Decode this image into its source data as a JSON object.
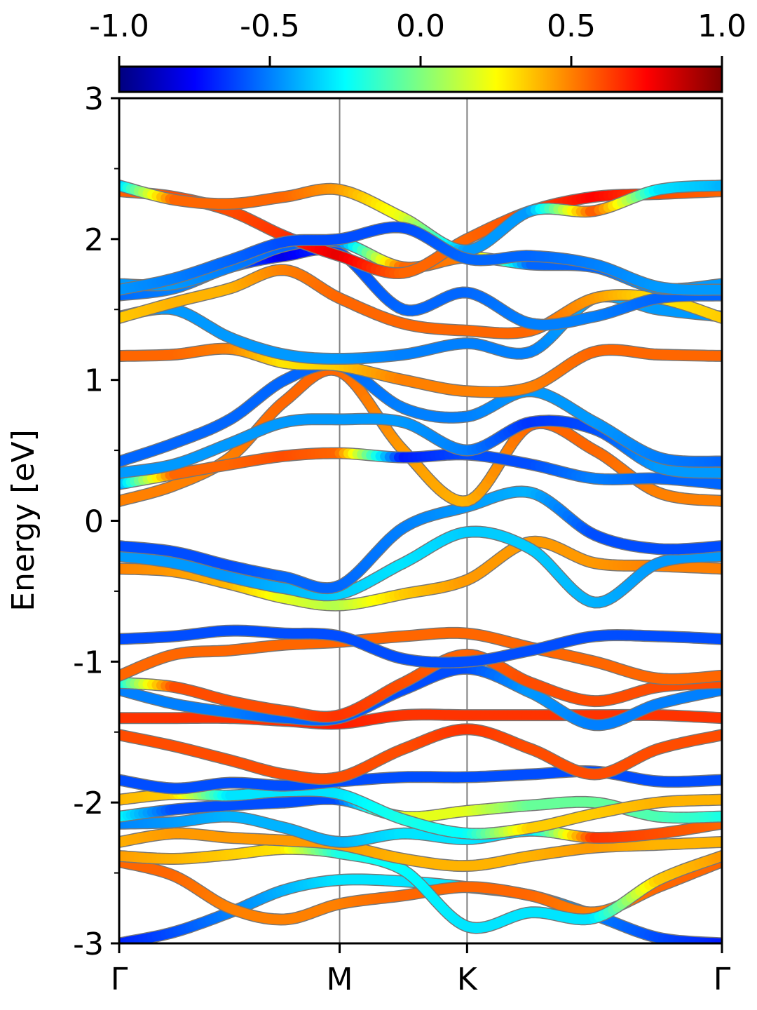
{
  "chart_data": {
    "type": "line",
    "title": "",
    "xlabel": "",
    "ylabel": "Energy [eV]",
    "ylim": [
      -3,
      3
    ],
    "yticks": [
      "3",
      "2",
      "1",
      "0",
      "-1",
      "-2",
      "-3"
    ],
    "xlim": [
      0,
      4.73
    ],
    "kpoints": [
      {
        "label": "Γ",
        "x": 0
      },
      {
        "label": "M",
        "x": 1.73
      },
      {
        "label": "K",
        "x": 2.73
      },
      {
        "label": "Γ",
        "x": 4.73
      }
    ],
    "colorbar": {
      "colormap": "jet",
      "range": [
        -1.0,
        1.0
      ],
      "ticks": [
        "-1.0",
        "-0.5",
        "0.0",
        "0.5",
        "1.0"
      ]
    },
    "series": [
      {
        "x": [
          0,
          0.43,
          0.87,
          1.3,
          1.73,
          2.23,
          2.73,
          3.23,
          3.73,
          4.23,
          4.73
        ],
        "y": [
          -3.0,
          -2.92,
          -2.78,
          -2.62,
          -2.55,
          -2.56,
          -2.6,
          -2.66,
          -2.8,
          -2.96,
          -3.0
        ],
        "c": [
          -0.7,
          -0.6,
          -0.5,
          -0.4,
          -0.3,
          -0.3,
          -0.3,
          -0.4,
          -0.5,
          -0.6,
          -0.7
        ]
      },
      {
        "x": [
          0,
          0.43,
          0.87,
          1.3,
          1.73,
          2.23,
          2.73,
          3.23,
          3.73,
          4.23,
          4.73
        ],
        "y": [
          -2.42,
          -2.52,
          -2.75,
          -2.83,
          -2.72,
          -2.66,
          -2.6,
          -2.66,
          -2.78,
          -2.6,
          -2.42
        ],
        "c": [
          0.55,
          0.55,
          0.5,
          0.5,
          0.5,
          0.55,
          0.55,
          0.55,
          0.5,
          0.55,
          0.55
        ]
      },
      {
        "x": [
          0,
          0.43,
          0.87,
          1.3,
          1.73,
          2.23,
          2.73,
          3.23,
          3.73,
          4.23,
          4.73
        ],
        "y": [
          -2.38,
          -2.4,
          -2.37,
          -2.33,
          -2.36,
          -2.48,
          -2.88,
          -2.78,
          -2.82,
          -2.55,
          -2.38
        ],
        "c": [
          0.45,
          0.4,
          0.35,
          0.3,
          -0.2,
          -0.25,
          -0.3,
          -0.3,
          -0.3,
          0.35,
          0.45
        ]
      },
      {
        "x": [
          0,
          0.43,
          0.87,
          1.3,
          1.73,
          2.23,
          2.73,
          3.23,
          3.73,
          4.23,
          4.73
        ],
        "y": [
          -2.28,
          -2.22,
          -2.25,
          -2.27,
          -2.3,
          -2.4,
          -2.45,
          -2.38,
          -2.32,
          -2.3,
          -2.28
        ],
        "c": [
          0.4,
          0.45,
          0.45,
          0.45,
          0.45,
          0.4,
          0.4,
          0.4,
          0.45,
          0.4,
          0.4
        ]
      },
      {
        "x": [
          0,
          0.43,
          0.87,
          1.3,
          1.73,
          2.23,
          2.73,
          3.23,
          3.73,
          4.23,
          4.73
        ],
        "y": [
          -2.15,
          -2.14,
          -2.1,
          -2.18,
          -2.28,
          -2.22,
          -2.26,
          -2.2,
          -2.25,
          -2.22,
          -2.15
        ],
        "c": [
          -0.5,
          -0.45,
          -0.4,
          -0.4,
          -0.4,
          -0.3,
          -0.3,
          -0.35,
          0.65,
          0.6,
          0.55
        ]
      },
      {
        "x": [
          0,
          0.43,
          0.87,
          1.3,
          1.73,
          2.23,
          2.73,
          3.23,
          3.73,
          4.23,
          4.73
        ],
        "y": [
          -2.1,
          -2.05,
          -2.02,
          -2.0,
          -1.98,
          -2.1,
          -2.06,
          -2.02,
          -2.0,
          -2.1,
          -2.1
        ],
        "c": [
          -0.2,
          -0.6,
          -0.6,
          -0.6,
          -0.6,
          0.2,
          0.2,
          -0.05,
          -0.05,
          -0.1,
          -0.2
        ]
      },
      {
        "x": [
          0,
          0.43,
          0.87,
          1.3,
          1.73,
          2.23,
          2.73,
          3.23,
          3.73,
          4.23,
          4.73
        ],
        "y": [
          -1.98,
          -1.94,
          -1.95,
          -1.92,
          -1.94,
          -2.12,
          -2.22,
          -2.18,
          -2.08,
          -2.0,
          -1.98
        ],
        "c": [
          0.4,
          0.35,
          -0.3,
          -0.3,
          -0.3,
          -0.2,
          -0.25,
          0.35,
          0.35,
          0.4,
          0.4
        ]
      },
      {
        "x": [
          0,
          0.43,
          0.87,
          1.3,
          1.73,
          2.23,
          2.73,
          3.23,
          3.73,
          4.23,
          4.73
        ],
        "y": [
          -1.84,
          -1.9,
          -1.86,
          -1.88,
          -1.85,
          -1.82,
          -1.82,
          -1.8,
          -1.78,
          -1.85,
          -1.84
        ],
        "c": [
          -0.6,
          -0.6,
          -0.6,
          -0.6,
          -0.6,
          -0.6,
          -0.6,
          -0.6,
          -0.6,
          -0.6,
          -0.6
        ]
      },
      {
        "x": [
          0,
          0.43,
          0.87,
          1.3,
          1.73,
          2.23,
          2.73,
          3.23,
          3.73,
          4.23,
          4.73
        ],
        "y": [
          -1.52,
          -1.6,
          -1.7,
          -1.8,
          -1.82,
          -1.62,
          -1.48,
          -1.62,
          -1.8,
          -1.62,
          -1.52
        ],
        "c": [
          0.6,
          0.6,
          0.6,
          0.6,
          0.6,
          0.6,
          0.65,
          0.6,
          0.6,
          0.6,
          0.6
        ]
      },
      {
        "x": [
          0,
          0.43,
          0.87,
          1.3,
          1.73,
          2.23,
          2.73,
          3.23,
          3.73,
          4.23,
          4.73
        ],
        "y": [
          -1.4,
          -1.4,
          -1.4,
          -1.42,
          -1.44,
          -1.38,
          -1.38,
          -1.38,
          -1.38,
          -1.38,
          -1.4
        ],
        "c": [
          0.65,
          0.65,
          0.65,
          0.65,
          0.7,
          0.65,
          0.65,
          0.65,
          0.65,
          0.65,
          0.65
        ]
      },
      {
        "x": [
          0,
          0.43,
          0.87,
          1.3,
          1.73,
          2.23,
          2.73,
          3.23,
          3.73,
          4.23,
          4.73
        ],
        "y": [
          -1.2,
          -1.3,
          -1.36,
          -1.4,
          -1.4,
          -1.2,
          -1.05,
          -1.22,
          -1.45,
          -1.3,
          -1.2
        ],
        "c": [
          -0.5,
          -0.5,
          -0.5,
          -0.55,
          -0.55,
          -0.6,
          -0.6,
          -0.45,
          -0.5,
          -0.5,
          -0.5
        ]
      },
      {
        "x": [
          0,
          0.43,
          0.87,
          1.3,
          1.73,
          2.23,
          2.73,
          3.23,
          3.73,
          4.23,
          4.73
        ],
        "y": [
          -1.15,
          -1.18,
          -1.28,
          -1.35,
          -1.38,
          -1.15,
          -0.95,
          -1.15,
          -1.28,
          -1.18,
          -1.15
        ],
        "c": [
          -0.35,
          0.6,
          0.6,
          0.6,
          0.65,
          0.6,
          0.55,
          0.6,
          0.6,
          0.6,
          0.6
        ]
      },
      {
        "x": [
          0,
          0.43,
          0.87,
          1.3,
          1.73,
          2.23,
          2.73,
          3.23,
          3.73,
          4.23,
          4.73
        ],
        "y": [
          -1.1,
          -0.95,
          -0.92,
          -0.88,
          -0.86,
          -0.82,
          -0.8,
          -0.9,
          -1.0,
          -1.12,
          -1.1
        ],
        "c": [
          0.55,
          0.55,
          0.55,
          0.55,
          0.55,
          0.55,
          0.55,
          0.55,
          0.55,
          0.55,
          0.55
        ]
      },
      {
        "x": [
          0,
          0.43,
          0.87,
          1.3,
          1.73,
          2.23,
          2.73,
          3.23,
          3.73,
          4.23,
          4.73
        ],
        "y": [
          -0.84,
          -0.82,
          -0.78,
          -0.8,
          -0.82,
          -0.98,
          -1.0,
          -0.92,
          -0.82,
          -0.82,
          -0.84
        ],
        "c": [
          -0.6,
          -0.6,
          -0.6,
          -0.6,
          -0.6,
          -0.6,
          -0.6,
          -0.6,
          -0.6,
          -0.6,
          -0.6
        ]
      },
      {
        "x": [
          0,
          0.43,
          0.87,
          1.3,
          1.73,
          2.23,
          2.73,
          3.23,
          3.73,
          4.23,
          4.73
        ],
        "y": [
          -0.34,
          -0.36,
          -0.45,
          -0.55,
          -0.6,
          -0.52,
          -0.42,
          -0.15,
          -0.3,
          -0.32,
          -0.34
        ],
        "c": [
          0.5,
          0.45,
          0.4,
          0.2,
          0.1,
          0.35,
          0.45,
          0.45,
          0.45,
          0.5,
          0.5
        ]
      },
      {
        "x": [
          0,
          0.43,
          0.87,
          1.3,
          1.73,
          2.23,
          2.73,
          3.23,
          3.73,
          4.23,
          4.73
        ],
        "y": [
          -0.25,
          -0.3,
          -0.4,
          -0.48,
          -0.52,
          -0.3,
          -0.08,
          -0.2,
          -0.58,
          -0.3,
          -0.25
        ],
        "c": [
          -0.45,
          -0.45,
          -0.45,
          -0.4,
          -0.35,
          -0.3,
          -0.35,
          -0.35,
          -0.4,
          -0.45,
          -0.45
        ]
      },
      {
        "x": [
          0,
          0.43,
          0.87,
          1.3,
          1.73,
          2.23,
          2.73,
          3.23,
          3.73,
          4.23,
          4.73
        ],
        "y": [
          -0.18,
          -0.22,
          -0.32,
          -0.4,
          -0.46,
          -0.05,
          0.1,
          0.2,
          -0.1,
          -0.2,
          -0.18
        ],
        "c": [
          -0.6,
          -0.6,
          -0.6,
          -0.55,
          -0.55,
          -0.5,
          -0.45,
          -0.4,
          -0.6,
          -0.6,
          -0.6
        ]
      },
      {
        "x": [
          0,
          0.43,
          0.87,
          1.3,
          1.73,
          2.23,
          2.73,
          3.23,
          3.73,
          4.23,
          4.73
        ],
        "y": [
          0.14,
          0.25,
          0.45,
          0.85,
          1.06,
          0.5,
          0.14,
          0.68,
          0.5,
          0.2,
          0.14
        ],
        "c": [
          0.5,
          0.5,
          0.5,
          0.55,
          0.55,
          0.45,
          0.4,
          0.55,
          0.55,
          0.5,
          0.5
        ]
      },
      {
        "x": [
          0,
          0.43,
          0.87,
          1.3,
          1.73,
          2.23,
          2.73,
          3.23,
          3.73,
          4.23,
          4.73
        ],
        "y": [
          0.26,
          0.33,
          0.4,
          0.46,
          0.48,
          0.45,
          0.47,
          0.4,
          0.3,
          0.3,
          0.26
        ],
        "c": [
          -0.55,
          0.55,
          0.55,
          0.6,
          0.55,
          -0.7,
          -0.6,
          -0.6,
          -0.5,
          -0.55,
          -0.55
        ]
      },
      {
        "x": [
          0,
          0.43,
          0.87,
          1.3,
          1.73,
          2.23,
          2.73,
          3.23,
          3.73,
          4.23,
          4.73
        ],
        "y": [
          0.34,
          0.4,
          0.55,
          0.7,
          0.72,
          0.7,
          0.5,
          0.7,
          0.65,
          0.38,
          0.34
        ],
        "c": [
          -0.45,
          -0.45,
          -0.45,
          -0.45,
          -0.45,
          -0.45,
          -0.5,
          -0.65,
          -0.6,
          -0.45,
          -0.45
        ]
      },
      {
        "x": [
          0,
          0.43,
          0.87,
          1.3,
          1.73,
          2.23,
          2.73,
          3.23,
          3.73,
          4.23,
          4.73
        ],
        "y": [
          0.42,
          0.55,
          0.72,
          1.0,
          1.1,
          0.8,
          0.74,
          0.92,
          0.7,
          0.45,
          0.42
        ],
        "c": [
          -0.55,
          -0.55,
          -0.55,
          -0.55,
          -0.55,
          -0.5,
          -0.5,
          -0.45,
          -0.45,
          -0.5,
          -0.55
        ]
      },
      {
        "x": [
          0,
          0.43,
          0.87,
          1.3,
          1.73,
          2.23,
          2.73,
          3.23,
          3.73,
          4.23,
          4.73
        ],
        "y": [
          1.17,
          1.18,
          1.22,
          1.12,
          1.1,
          1.0,
          0.92,
          0.95,
          1.2,
          1.18,
          1.17
        ],
        "c": [
          0.55,
          0.55,
          0.5,
          0.3,
          0.35,
          0.5,
          0.5,
          0.5,
          0.55,
          0.55,
          0.55
        ]
      },
      {
        "x": [
          0,
          0.43,
          0.87,
          1.3,
          1.73,
          2.23,
          2.73,
          3.23,
          3.73,
          4.23,
          4.73
        ],
        "y": [
          1.45,
          1.5,
          1.3,
          1.18,
          1.15,
          1.18,
          1.26,
          1.2,
          1.58,
          1.5,
          1.45
        ],
        "c": [
          -0.45,
          -0.45,
          -0.45,
          -0.45,
          -0.45,
          -0.5,
          -0.5,
          -0.5,
          -0.4,
          -0.45,
          -0.45
        ]
      },
      {
        "x": [
          0,
          0.43,
          0.87,
          1.3,
          1.73,
          2.23,
          2.73,
          3.23,
          3.73,
          4.23,
          4.73
        ],
        "y": [
          1.44,
          1.55,
          1.65,
          1.78,
          1.58,
          1.4,
          1.35,
          1.35,
          1.58,
          1.58,
          1.44
        ],
        "c": [
          0.35,
          0.4,
          0.4,
          0.5,
          0.55,
          0.55,
          0.55,
          0.55,
          0.45,
          0.3,
          0.35
        ]
      },
      {
        "x": [
          0,
          0.43,
          0.87,
          1.3,
          1.73,
          2.23,
          2.73,
          3.23,
          3.73,
          4.23,
          4.73
        ],
        "y": [
          1.6,
          1.65,
          1.8,
          1.88,
          1.9,
          1.5,
          1.62,
          1.4,
          1.45,
          1.58,
          1.6
        ],
        "c": [
          -0.55,
          -0.5,
          -0.5,
          -0.8,
          -0.6,
          -0.55,
          -0.55,
          -0.5,
          -0.5,
          -0.55,
          -0.55
        ]
      },
      {
        "x": [
          0,
          0.43,
          0.87,
          1.3,
          1.73,
          2.23,
          2.73,
          3.23,
          3.73,
          4.23,
          4.73
        ],
        "y": [
          1.68,
          1.68,
          1.8,
          1.95,
          1.98,
          1.8,
          1.87,
          1.82,
          1.8,
          1.65,
          1.68
        ],
        "c": [
          -0.45,
          -0.45,
          -0.5,
          -0.55,
          -0.55,
          0.55,
          0.5,
          -0.55,
          -0.55,
          -0.45,
          -0.45
        ]
      },
      {
        "x": [
          0,
          0.43,
          0.87,
          1.3,
          1.73,
          2.23,
          2.73,
          3.23,
          3.73,
          4.23,
          4.73
        ],
        "y": [
          2.34,
          2.3,
          2.2,
          2.02,
          1.88,
          1.76,
          2.0,
          2.2,
          2.3,
          2.32,
          2.34
        ],
        "c": [
          0.55,
          0.6,
          0.6,
          0.65,
          0.8,
          0.55,
          0.55,
          0.6,
          0.75,
          0.6,
          0.55
        ]
      },
      {
        "x": [
          0,
          0.43,
          0.87,
          1.3,
          1.73,
          2.23,
          2.73,
          3.23,
          3.73,
          4.23,
          4.73
        ],
        "y": [
          2.38,
          2.28,
          2.25,
          2.3,
          2.35,
          2.15,
          1.92,
          2.2,
          2.2,
          2.35,
          2.38
        ],
        "c": [
          -0.45,
          0.55,
          0.55,
          0.55,
          0.45,
          0.2,
          -0.45,
          -0.45,
          0.6,
          -0.3,
          -0.4
        ]
      },
      {
        "x": [
          0,
          0.43,
          0.87,
          1.3,
          1.73,
          2.23,
          2.73,
          3.23,
          3.73,
          4.23,
          4.73
        ],
        "y": [
          1.64,
          1.72,
          1.85,
          1.98,
          2.0,
          2.08,
          1.86,
          1.88,
          1.82,
          1.66,
          1.64
        ],
        "c": [
          -0.45,
          -0.5,
          -0.55,
          -0.6,
          -0.6,
          -0.6,
          -0.55,
          -0.55,
          -0.5,
          -0.45,
          -0.45
        ]
      }
    ]
  }
}
